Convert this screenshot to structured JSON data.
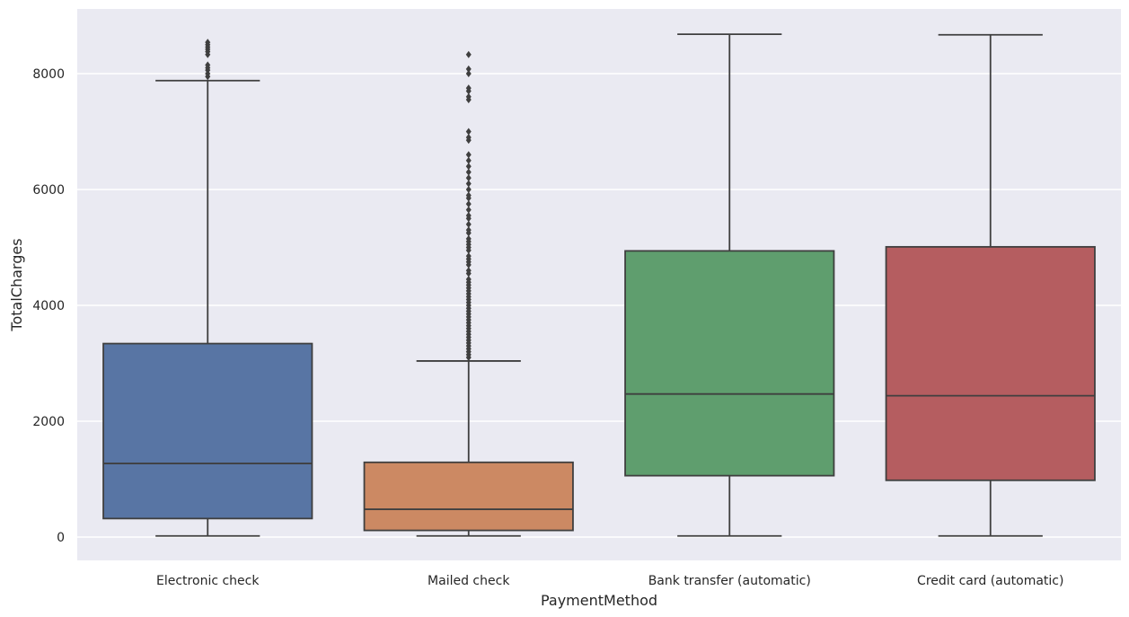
{
  "chart_data": {
    "type": "box",
    "xlabel": "PaymentMethod",
    "ylabel": "TotalCharges",
    "ylim": [
      -400,
      9150
    ],
    "yticks": [
      0,
      2000,
      4000,
      6000,
      8000
    ],
    "grid": true,
    "background": "#eaeaf2",
    "categories": [
      "Electronic check",
      "Mailed check",
      "Bank transfer (automatic)",
      "Credit card (automatic)"
    ],
    "boxes": [
      {
        "category": "Electronic check",
        "color": "#5875a4",
        "whisker_low": 18.8,
        "q1": 320,
        "median": 1270,
        "q3": 3340,
        "whisker_high": 7880,
        "outliers": [
          7950,
          8000,
          8060,
          8100,
          8150,
          8330,
          8380,
          8420,
          8460,
          8500,
          8540
        ]
      },
      {
        "category": "Mailed check",
        "color": "#cc8963",
        "whisker_low": 18.8,
        "q1": 115,
        "median": 480,
        "q3": 1290,
        "whisker_high": 3040,
        "outliers": [
          3100,
          3150,
          3200,
          3250,
          3300,
          3350,
          3400,
          3450,
          3500,
          3550,
          3600,
          3650,
          3700,
          3750,
          3800,
          3850,
          3900,
          3950,
          4000,
          4050,
          4100,
          4150,
          4200,
          4250,
          4300,
          4350,
          4400,
          4450,
          4550,
          4600,
          4700,
          4750,
          4800,
          4850,
          4950,
          5000,
          5050,
          5100,
          5150,
          5250,
          5300,
          5400,
          5500,
          5550,
          5650,
          5750,
          5850,
          5900,
          6000,
          6100,
          6200,
          6300,
          6400,
          6500,
          6600,
          6850,
          6900,
          7000,
          7550,
          7600,
          7700,
          7750,
          8000,
          8080,
          8330
        ]
      },
      {
        "category": "Bank transfer (automatic)",
        "color": "#5f9e6e",
        "whisker_low": 18.8,
        "q1": 1060,
        "median": 2470,
        "q3": 4940,
        "whisker_high": 8680,
        "outliers": []
      },
      {
        "category": "Credit card (automatic)",
        "color": "#b55d60",
        "whisker_low": 18.8,
        "q1": 980,
        "median": 2440,
        "q3": 5010,
        "whisker_high": 8670,
        "outliers": []
      }
    ]
  }
}
